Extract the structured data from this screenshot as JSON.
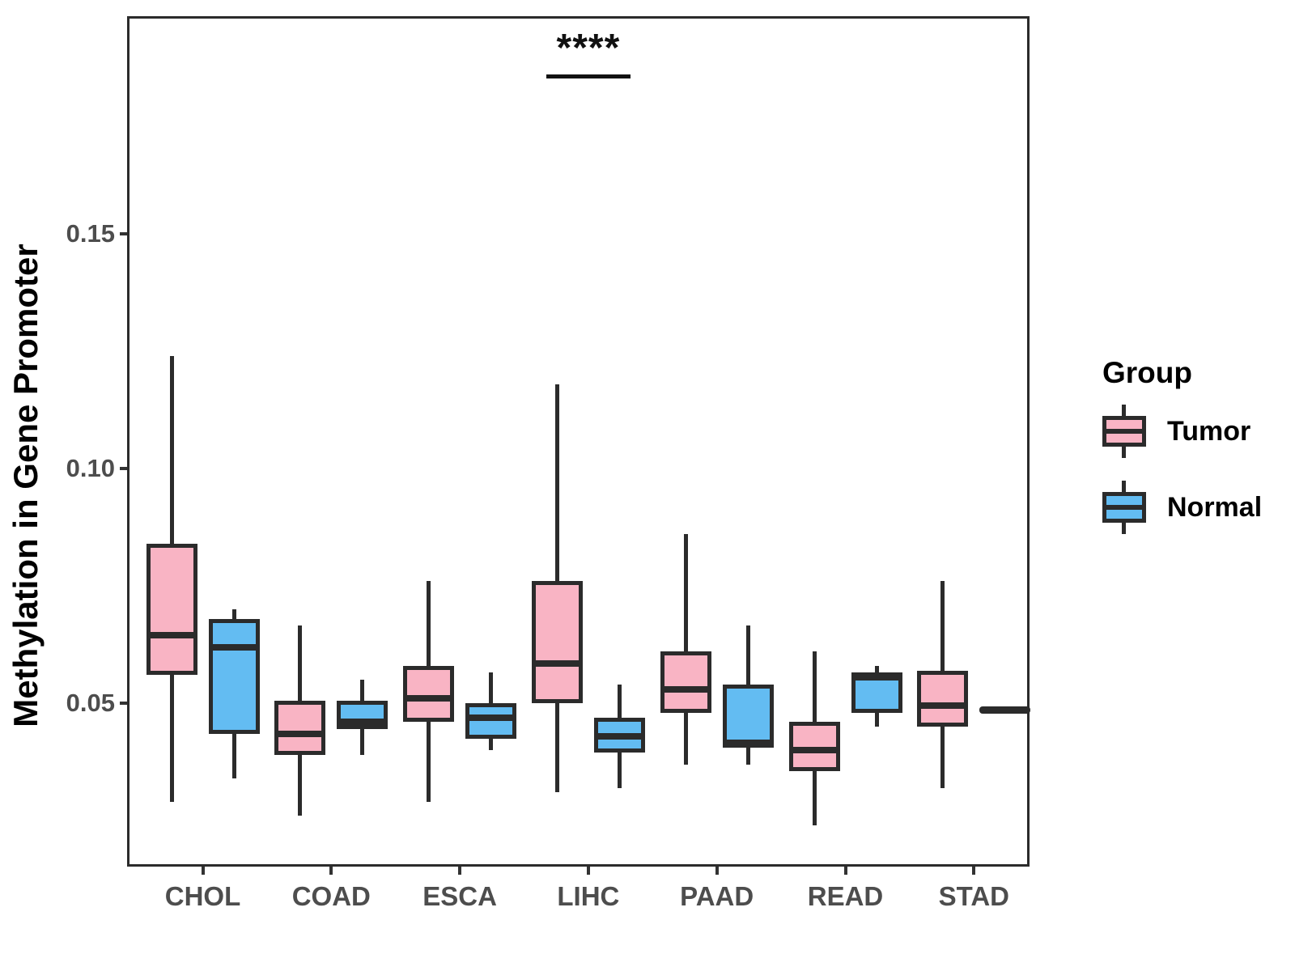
{
  "y_axis": {
    "title": "Methylation in Gene Promoter",
    "ticks": [
      {
        "label": "0.15",
        "value": 0.15
      },
      {
        "label": "0.10",
        "value": 0.1
      },
      {
        "label": "0.05",
        "value": 0.05
      }
    ]
  },
  "x_axis": {
    "categories": [
      "CHOL",
      "COAD",
      "ESCA",
      "LIHC",
      "PAAD",
      "READ",
      "STAD"
    ]
  },
  "legend": {
    "title": "Group",
    "items": [
      {
        "label": "Tumor",
        "color": "#F9B4C4"
      },
      {
        "label": "Normal",
        "color": "#63BCF2"
      }
    ]
  },
  "annotation": {
    "text": "****",
    "category": "LIHC",
    "bar_value": 0.184,
    "text_value": 0.1885
  },
  "chart_data": {
    "type": "boxplot",
    "title": "",
    "xlabel": "",
    "ylabel": "Methylation in Gene Promoter",
    "ylim": [
      0.0152,
      0.1964
    ],
    "grid": false,
    "legend_position": "right",
    "categories": [
      "CHOL",
      "COAD",
      "ESCA",
      "LIHC",
      "PAAD",
      "READ",
      "STAD"
    ],
    "series": [
      {
        "name": "Tumor",
        "color": "#F9B4C4",
        "boxes": [
          {
            "lo": 0.029,
            "q1": 0.056,
            "med": 0.0645,
            "q3": 0.084,
            "hi": 0.124
          },
          {
            "lo": 0.026,
            "q1": 0.039,
            "med": 0.0435,
            "q3": 0.0505,
            "hi": 0.0665
          },
          {
            "lo": 0.029,
            "q1": 0.046,
            "med": 0.051,
            "q3": 0.058,
            "hi": 0.076
          },
          {
            "lo": 0.031,
            "q1": 0.05,
            "med": 0.0585,
            "q3": 0.076,
            "hi": 0.118
          },
          {
            "lo": 0.037,
            "q1": 0.048,
            "med": 0.053,
            "q3": 0.061,
            "hi": 0.086
          },
          {
            "lo": 0.024,
            "q1": 0.0355,
            "med": 0.04,
            "q3": 0.046,
            "hi": 0.061
          },
          {
            "lo": 0.032,
            "q1": 0.045,
            "med": 0.0495,
            "q3": 0.057,
            "hi": 0.076
          }
        ]
      },
      {
        "name": "Normal",
        "color": "#63BCF2",
        "boxes": [
          {
            "lo": 0.034,
            "q1": 0.0435,
            "med": 0.062,
            "q3": 0.068,
            "hi": 0.07
          },
          {
            "lo": 0.039,
            "q1": 0.0445,
            "med": 0.046,
            "q3": 0.0505,
            "hi": 0.055
          },
          {
            "lo": 0.04,
            "q1": 0.0425,
            "med": 0.047,
            "q3": 0.05,
            "hi": 0.0565
          },
          {
            "lo": 0.032,
            "q1": 0.0395,
            "med": 0.043,
            "q3": 0.047,
            "hi": 0.054
          },
          {
            "lo": 0.037,
            "q1": 0.0405,
            "med": 0.0415,
            "q3": 0.054,
            "hi": 0.0665
          },
          {
            "lo": 0.045,
            "q1": 0.048,
            "med": 0.0555,
            "q3": 0.0565,
            "hi": 0.058
          },
          {
            "lo": 0.0486,
            "q1": 0.0486,
            "med": 0.0486,
            "q3": 0.0486,
            "hi": 0.0486,
            "flat": true
          }
        ]
      }
    ]
  }
}
